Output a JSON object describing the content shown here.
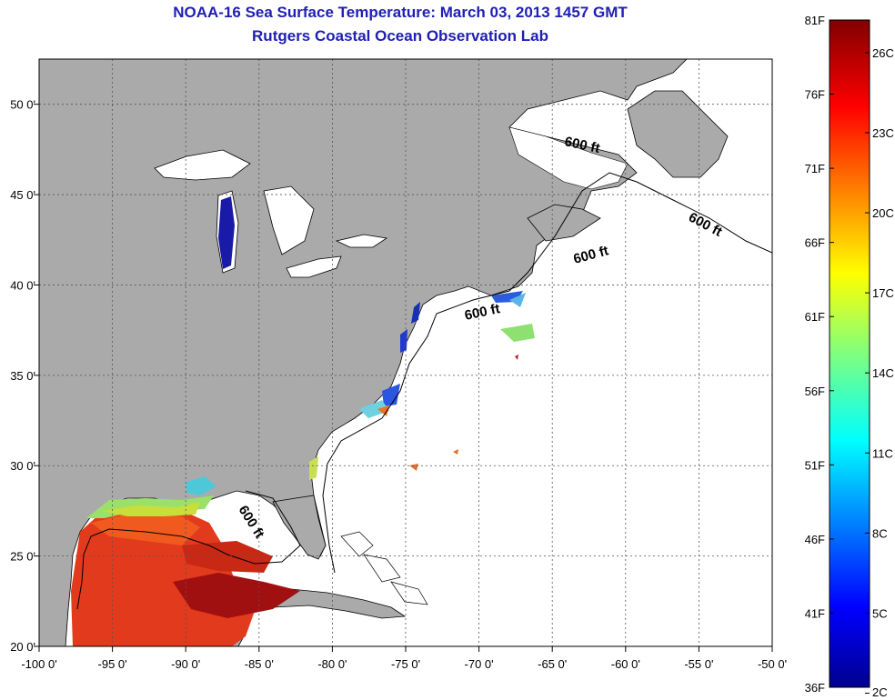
{
  "header": {
    "title": "NOAA-16 Sea Surface Temperature:  March 03, 2013 1457 GMT",
    "subtitle": "Rutgers Coastal Ocean Observation Lab"
  },
  "axes": {
    "longitude_ticks": [
      "-100 0'",
      "-95 0'",
      "-90 0'",
      "-85 0'",
      "-80 0'",
      "-75 0'",
      "-70 0'",
      "-65 0'",
      "-60 0'",
      "-55 0'",
      "-50 0'"
    ],
    "latitude_ticks": [
      "50 0'",
      "45 0'",
      "40 0'",
      "35 0'",
      "30 0'",
      "25 0'",
      "20 0'"
    ],
    "lon_range": [
      -100,
      -50
    ],
    "lat_range": [
      20,
      52.5
    ],
    "grid": true
  },
  "isobath_labels": [
    "600 ft",
    "600 ft",
    "600 ft",
    "600 ft",
    "600 ft"
  ],
  "colorbar": {
    "fahrenheit_labels": [
      "81F",
      "76F",
      "71F",
      "66F",
      "61F",
      "56F",
      "51F",
      "46F",
      "41F",
      "36F"
    ],
    "celsius_labels": [
      "26C",
      "23C",
      "20C",
      "17C",
      "14C",
      "11C",
      "8C",
      "5C",
      "2C"
    ],
    "range_f": [
      36,
      81
    ],
    "colormap": "jet"
  },
  "colors": {
    "title": "#1f1fb4",
    "land": "#aaaaaa",
    "ocean_no_data": "#ffffff",
    "grid": "#555555"
  }
}
